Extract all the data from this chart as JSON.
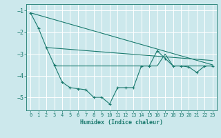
{
  "xlabel": "Humidex (Indice chaleur)",
  "bg_color": "#cce8ec",
  "grid_color": "#ffffff",
  "line_color": "#1a7a6e",
  "xlim": [
    -0.5,
    23.5
  ],
  "ylim": [
    -5.6,
    -0.7
  ],
  "yticks": [
    -1,
    -2,
    -3,
    -4,
    -5
  ],
  "xticks": [
    0,
    1,
    2,
    3,
    4,
    5,
    6,
    7,
    8,
    9,
    10,
    11,
    12,
    13,
    14,
    15,
    16,
    17,
    18,
    19,
    20,
    21,
    22,
    23
  ],
  "series1_x": [
    0,
    1,
    2,
    3,
    4,
    5,
    6,
    7,
    8,
    9,
    10,
    11,
    12,
    13,
    14,
    15,
    16,
    17,
    18,
    19,
    20,
    21,
    22,
    23
  ],
  "series1_y": [
    -1.1,
    -1.8,
    -2.7,
    -3.5,
    -4.3,
    -4.55,
    -4.6,
    -4.65,
    -5.0,
    -5.0,
    -5.3,
    -4.55,
    -4.55,
    -4.55,
    -3.55,
    -3.55,
    -2.85,
    -3.2,
    -3.55,
    -3.55,
    -3.6,
    -3.85,
    -3.55,
    -3.55
  ],
  "trend1_x": [
    0,
    23
  ],
  "trend1_y": [
    -1.1,
    -3.5
  ],
  "trend2_x": [
    2,
    23
  ],
  "trend2_y": [
    -2.7,
    -3.3
  ],
  "flat_x": [
    3,
    14,
    15,
    16,
    17,
    18,
    19,
    20,
    21,
    22,
    23
  ],
  "flat_y": [
    -3.55,
    -3.55,
    -3.55,
    -3.55,
    -3.0,
    -3.55,
    -3.55,
    -3.55,
    -3.55,
    -3.55,
    -3.55
  ]
}
